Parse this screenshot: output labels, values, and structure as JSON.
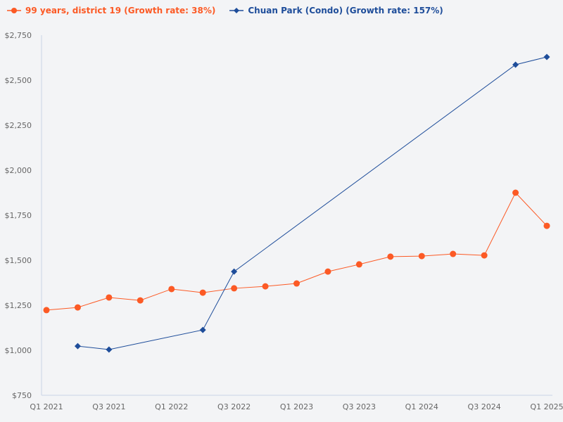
{
  "legend": [
    {
      "label": "99 years, district 19 (Growth rate: 38%)",
      "color": "#fc5a25",
      "marker": "circle"
    },
    {
      "label": "Chuan Park (Condo) (Growth rate: 157%)",
      "color": "#1e4d9a",
      "marker": "diamond"
    }
  ],
  "chart_data": {
    "type": "line",
    "title": "",
    "xlabel": "",
    "ylabel": "",
    "ylim": [
      750,
      2750
    ],
    "y_ticks": [
      "$750",
      "$1,000",
      "$1,250",
      "$1,500",
      "$1,750",
      "$2,000",
      "$2,250",
      "$2,500",
      "$2,750"
    ],
    "x_tick_labels": [
      "Q1 2021",
      "Q3 2021",
      "Q1 2022",
      "Q3 2022",
      "Q1 2023",
      "Q3 2023",
      "Q1 2024",
      "Q3 2024",
      "Q1 2025"
    ],
    "grid": false,
    "legend_position": "top-left",
    "x": [
      "Q1 2021",
      "Q2 2021",
      "Q3 2021",
      "Q4 2021",
      "Q1 2022",
      "Q2 2022",
      "Q3 2022",
      "Q4 2022",
      "Q1 2023",
      "Q2 2023",
      "Q3 2023",
      "Q4 2023",
      "Q1 2024",
      "Q2 2024",
      "Q3 2024",
      "Q4 2024",
      "Q1 2025"
    ],
    "series": [
      {
        "name": "99 years, district 19 (Growth rate: 38%)",
        "color": "#fc5a25",
        "values": [
          1223,
          1238,
          1293,
          1277,
          1340,
          1320,
          1344,
          1355,
          1371,
          1437,
          1477,
          1520,
          1523,
          1535,
          1527,
          1875,
          1691
        ]
      },
      {
        "name": "Chuan Park (Condo) (Growth rate: 157%)",
        "color": "#1e4d9a",
        "values": [
          null,
          1023,
          1004,
          null,
          null,
          1113,
          1437,
          null,
          null,
          null,
          null,
          null,
          null,
          null,
          null,
          2586,
          2629
        ]
      }
    ]
  }
}
